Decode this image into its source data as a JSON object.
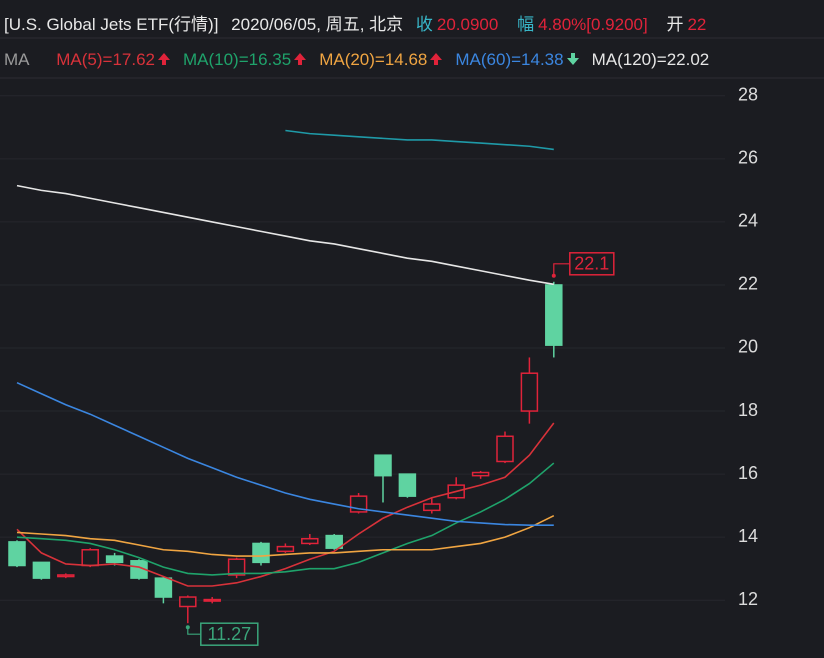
{
  "chart_data": {
    "type": "candlestick",
    "header": {
      "name": "[U.S. Global Jets ETF(行情)]",
      "date": "2020/06/05, 周五, 北京",
      "close_label": "收",
      "close_text": "20.0900",
      "change_label": "幅",
      "change_text": "4.80%[0.9200]",
      "open_label": "开",
      "open_text": "22"
    },
    "legend_title": "MA",
    "open": [
      13.85,
      13.2,
      12.75,
      13.1,
      13.4,
      13.25,
      12.7,
      11.8,
      11.98,
      12.8,
      13.8,
      13.55,
      13.8,
      14.05,
      14.8,
      16.6,
      16.0,
      14.85,
      15.25,
      15.95,
      16.4,
      18.0,
      22.0
    ],
    "high": [
      13.9,
      13.2,
      12.85,
      13.65,
      13.5,
      13.3,
      12.75,
      12.15,
      12.1,
      13.35,
      13.85,
      13.8,
      14.1,
      14.1,
      15.4,
      16.6,
      16.0,
      15.25,
      15.9,
      16.1,
      17.35,
      19.7,
      22.1
    ],
    "low": [
      13.05,
      12.65,
      12.7,
      13.05,
      13.1,
      12.65,
      11.9,
      11.27,
      11.9,
      12.7,
      13.1,
      13.5,
      13.75,
      13.6,
      14.75,
      15.1,
      15.25,
      14.75,
      15.2,
      15.85,
      16.35,
      17.6,
      19.7
    ],
    "close": [
      13.1,
      12.7,
      12.8,
      13.6,
      13.2,
      12.7,
      12.1,
      12.1,
      12.02,
      13.3,
      13.2,
      13.7,
      13.95,
      13.65,
      15.3,
      15.95,
      15.3,
      15.05,
      15.65,
      16.05,
      17.2,
      19.2,
      20.09
    ],
    "up_color": "#e0233a",
    "down_color": "#5fd3a1",
    "series": [
      {
        "name": "MA(5)=17.62",
        "trend": "up",
        "color": "#d8323a",
        "values": [
          14.25,
          13.5,
          13.15,
          13.1,
          13.15,
          13.05,
          12.75,
          12.45,
          12.45,
          12.55,
          12.75,
          13.0,
          13.3,
          13.55,
          14.1,
          14.6,
          14.95,
          15.25,
          15.45,
          15.65,
          15.9,
          16.6,
          17.62
        ]
      },
      {
        "name": "MA(10)=16.35",
        "trend": "up",
        "color": "#1fa36b",
        "values": [
          14.0,
          13.95,
          13.9,
          13.8,
          13.6,
          13.35,
          13.05,
          12.85,
          12.8,
          12.85,
          12.85,
          12.9,
          13.0,
          13.0,
          13.2,
          13.5,
          13.8,
          14.05,
          14.45,
          14.8,
          15.2,
          15.7,
          16.35
        ]
      },
      {
        "name": "MA(20)=14.68",
        "trend": "up",
        "color": "#f0a542",
        "values": [
          14.15,
          14.1,
          14.05,
          13.95,
          13.9,
          13.75,
          13.6,
          13.55,
          13.45,
          13.4,
          13.4,
          13.45,
          13.5,
          13.5,
          13.55,
          13.6,
          13.6,
          13.6,
          13.7,
          13.8,
          14.0,
          14.3,
          14.68
        ]
      },
      {
        "name": "MA(60)=14.38",
        "trend": "down",
        "color": "#3b86e0",
        "values": [
          18.9,
          18.55,
          18.2,
          17.9,
          17.55,
          17.2,
          16.85,
          16.5,
          16.2,
          15.9,
          15.65,
          15.4,
          15.2,
          15.05,
          14.9,
          14.8,
          14.7,
          14.6,
          14.5,
          14.45,
          14.4,
          14.38,
          14.38
        ]
      },
      {
        "name": "MA(120)=22.02",
        "color": "#e6e6e6",
        "values": [
          25.15,
          25.0,
          24.9,
          24.75,
          24.6,
          24.45,
          24.3,
          24.15,
          24.0,
          23.85,
          23.7,
          23.55,
          23.4,
          23.3,
          23.15,
          23.0,
          22.85,
          22.75,
          22.6,
          22.45,
          22.3,
          22.15,
          22.02
        ]
      },
      {
        "color": "#1f9aa8",
        "values": [
          null,
          null,
          null,
          null,
          null,
          null,
          null,
          null,
          null,
          null,
          null,
          26.9,
          26.8,
          26.75,
          26.7,
          26.65,
          26.6,
          26.6,
          26.55,
          26.5,
          26.45,
          26.4,
          26.3
        ]
      }
    ],
    "ylim": [
      10.42,
      28.66
    ],
    "yticks": [
      12,
      14,
      16,
      18,
      20,
      22,
      24,
      26,
      28
    ],
    "grid": true,
    "max_label_color": "#e0233a",
    "min_label_color": "#3aa57a"
  }
}
